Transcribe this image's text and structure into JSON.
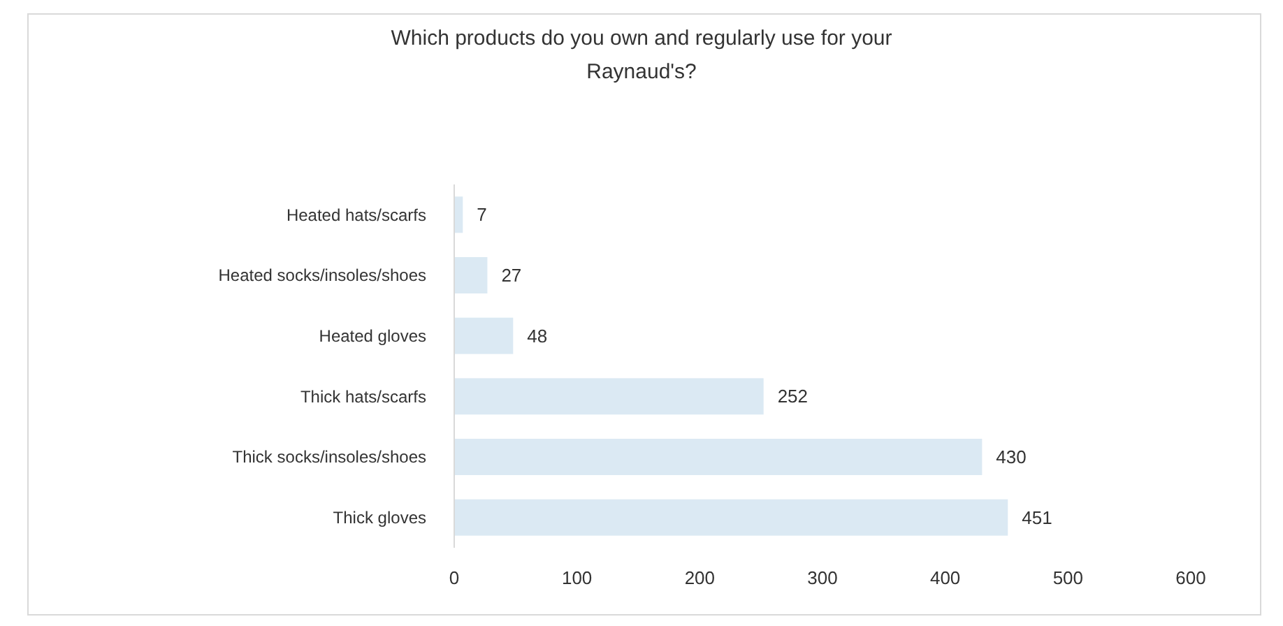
{
  "chart_data": {
    "type": "bar",
    "orientation": "horizontal",
    "title": "Which products do you own and regularly use for your\nRaynaud's?",
    "categories": [
      "Heated hats/scarfs",
      "Heated socks/insoles/shoes",
      "Heated gloves",
      "Thick hats/scarfs",
      "Thick socks/insoles/shoes",
      "Thick gloves"
    ],
    "values": [
      7,
      27,
      48,
      252,
      430,
      451
    ],
    "color": "#dbe9f3",
    "xlim": [
      0,
      600
    ],
    "xticks": [
      0,
      100,
      200,
      300,
      400,
      500,
      600
    ],
    "grid": false,
    "data_labels": true
  }
}
